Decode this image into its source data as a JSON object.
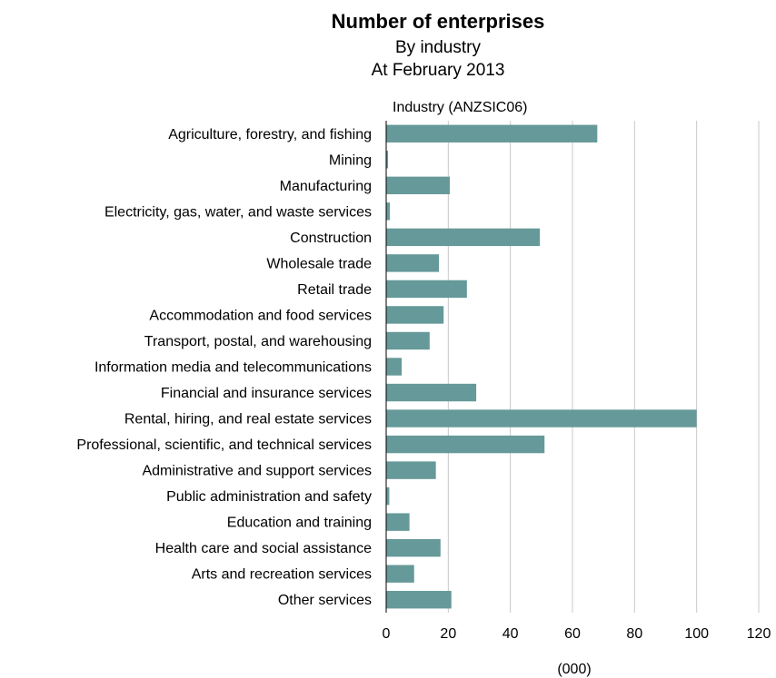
{
  "chart_data": {
    "type": "bar",
    "orientation": "horizontal",
    "title": "Number of enterprises",
    "subtitles": [
      "By industry",
      "At February 2013"
    ],
    "ylabel": "Industry (ANZSIC06)",
    "xlabel": "(000)",
    "xlim": [
      0,
      120
    ],
    "xticks": [
      0,
      20,
      40,
      60,
      80,
      100,
      120
    ],
    "grid": "vertical",
    "legend": "none",
    "bar_color": "#669999",
    "grid_color": "#c8c8c8",
    "axis_color": "#000000",
    "categories": [
      "Agriculture, forestry, and fishing",
      "Mining",
      "Manufacturing",
      "Electricity, gas, water, and waste services",
      "Construction",
      "Wholesale trade",
      "Retail trade",
      "Accommodation and food services",
      "Transport, postal, and warehousing",
      "Information media and telecommunications",
      "Financial and insurance services",
      "Rental, hiring, and real estate services",
      "Professional, scientific, and technical services",
      "Administrative and support services",
      "Public administration and safety",
      "Education and training",
      "Health care and social assistance",
      "Arts and recreation services",
      "Other services"
    ],
    "values": [
      68,
      0.6,
      20.5,
      1.2,
      49.5,
      17,
      26,
      18.5,
      14,
      5,
      29,
      100,
      51,
      16,
      1,
      7.5,
      17.5,
      9,
      21
    ]
  }
}
